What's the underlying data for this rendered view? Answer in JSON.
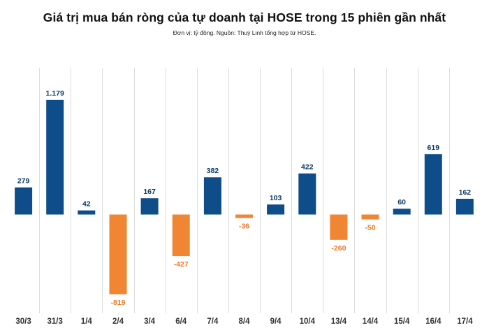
{
  "header": {
    "title": "Giá trị mua bán ròng của tự doanh tại HOSE trong 15 phiên gần nhất",
    "subtitle": "Đơn vị: tỷ đồng. Nguồn: Thuỳ Linh tổng hợp từ HOSE."
  },
  "chart_data": {
    "type": "bar",
    "title": "Giá trị mua bán ròng của tự doanh tại HOSE trong 15 phiên gần nhất",
    "subtitle": "Đơn vị: tỷ đồng. Nguồn: Thuỳ Linh tổng hợp từ HOSE.",
    "xlabel": "",
    "ylabel": "",
    "grid": "vertical separators",
    "categories": [
      "30/3",
      "31/3",
      "1/4",
      "2/4",
      "3/4",
      "6/4",
      "7/4",
      "8/4",
      "9/4",
      "10/4",
      "13/4",
      "14/4",
      "15/4",
      "16/4",
      "17/4"
    ],
    "values": [
      279,
      1179,
      42,
      -819,
      167,
      -427,
      382,
      -36,
      103,
      422,
      -260,
      -50,
      60,
      619,
      162
    ],
    "value_labels": [
      "279",
      "1.179",
      "42",
      "-819",
      "167",
      "-427",
      "382",
      "-36",
      "103",
      "422",
      "-260",
      "-50",
      "60",
      "619",
      "162"
    ],
    "ylim": [
      -1000,
      1300
    ],
    "colors": {
      "positive": "#0E4C8A",
      "negative": "#F08533",
      "positive_label": "#0E3A66",
      "negative_label": "#E8792B",
      "grid": "#DCDCDC"
    }
  }
}
